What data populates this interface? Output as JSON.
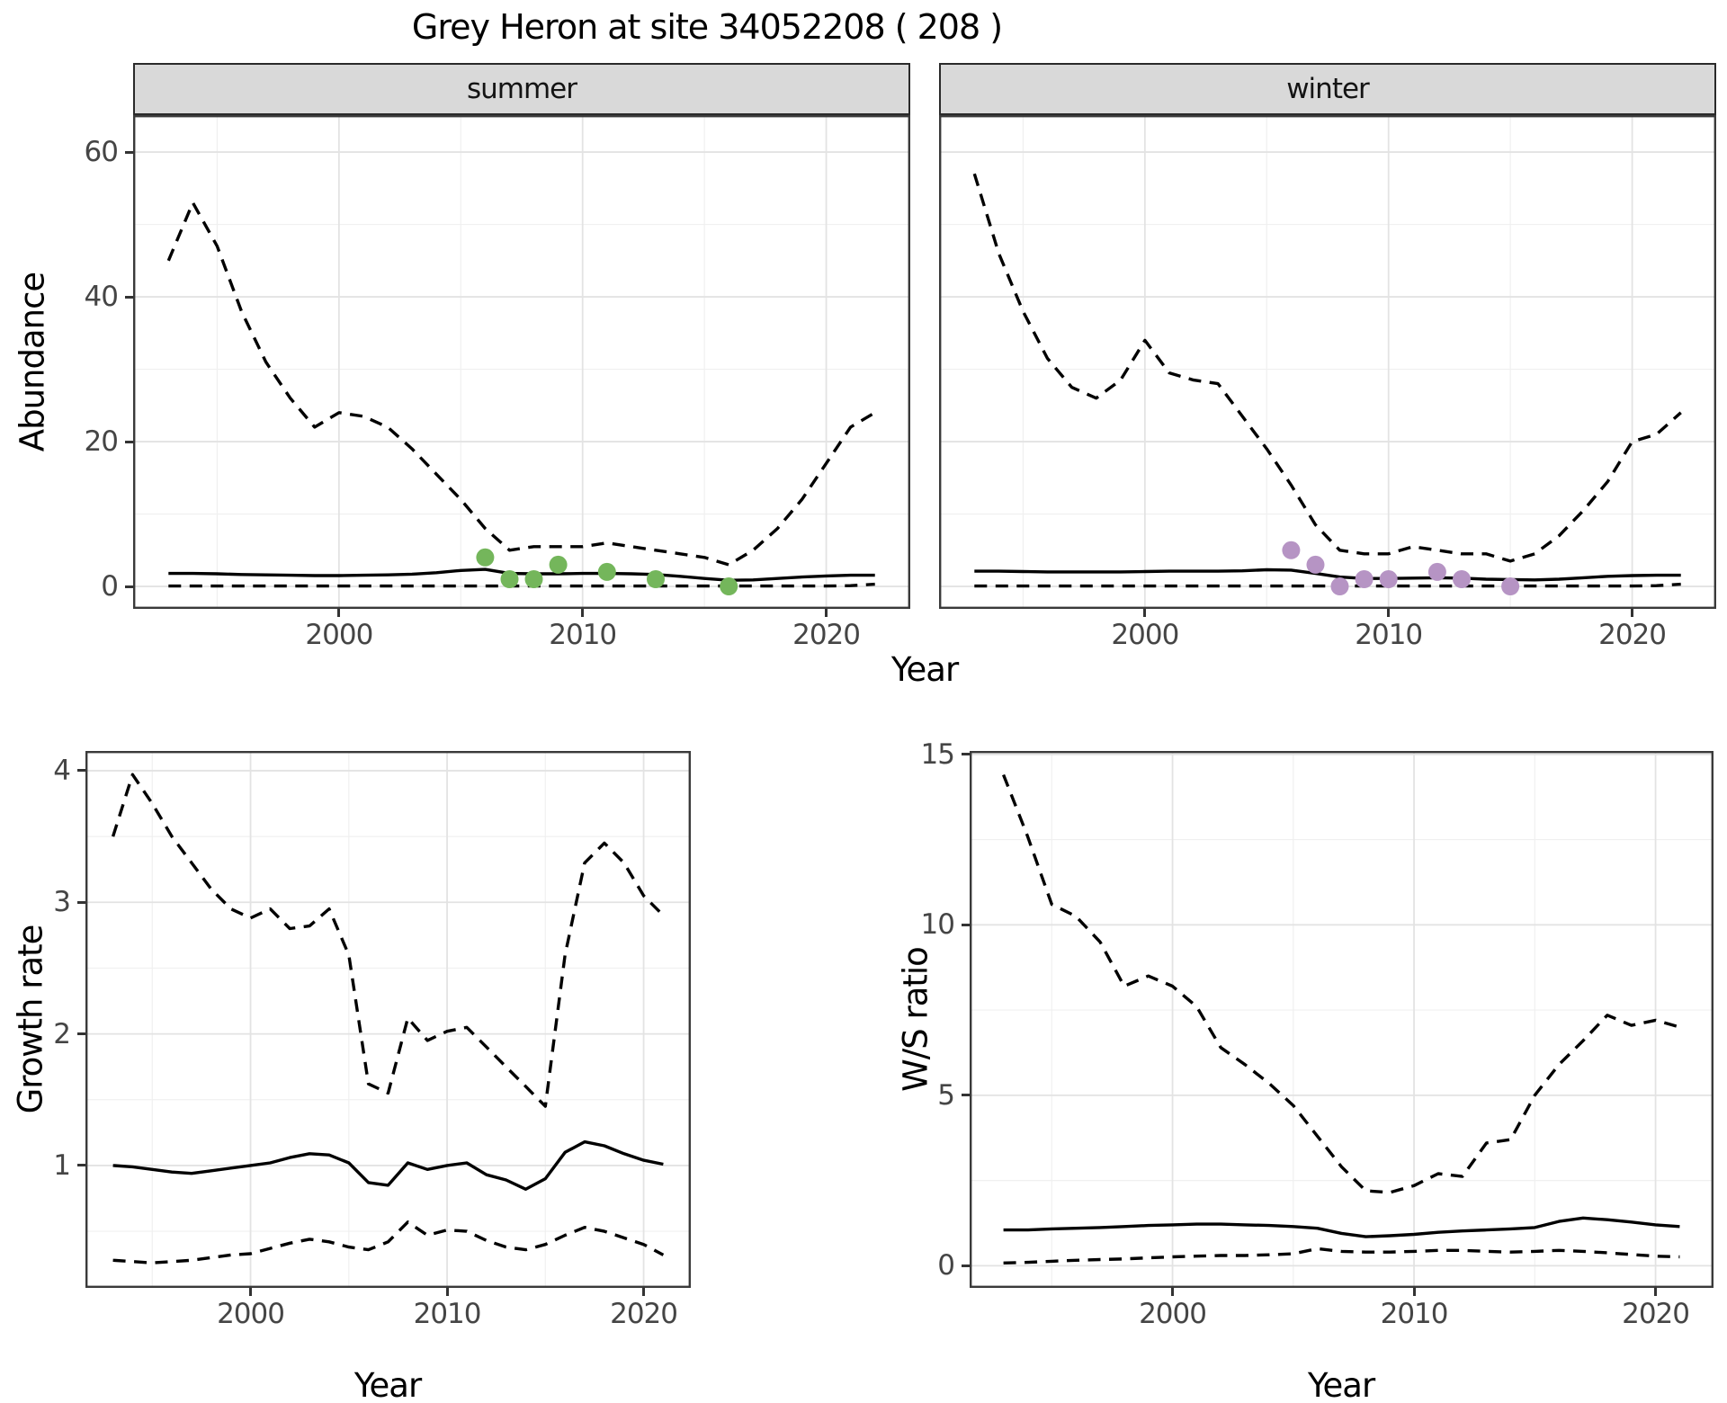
{
  "title": "Grey Heron at site 34052208 ( 208 )",
  "facets": [
    "summer",
    "winter"
  ],
  "axes": {
    "abundance": "Abundance",
    "year": "Year",
    "growth": "Growth rate",
    "ws": "W/S ratio"
  },
  "colors": {
    "summer_points": "#74b65b",
    "winter_points": "#b694c4",
    "line": "#000000",
    "strip_bg": "#d9d9d9",
    "grid_major": "#e3e3e3",
    "grid_minor": "#f0f0f0",
    "panel_border": "#3a3a3a",
    "tick_text": "#454545"
  },
  "chart_data": [
    {
      "id": "abundance-summer",
      "type": "line",
      "facet": "summer",
      "xlabel": "Year",
      "ylabel": "Abundance",
      "xlim": [
        1991.55,
        2023.45
      ],
      "ylim": [
        -3.1,
        65.1
      ],
      "xticks": [
        2000,
        2010,
        2020
      ],
      "xminor": [
        1995,
        2005,
        2015
      ],
      "yticks": [
        0,
        20,
        40,
        60
      ],
      "yminor": [
        10,
        30,
        50
      ],
      "x": [
        1993,
        1994,
        1995,
        1996,
        1997,
        1998,
        1999,
        2000,
        2001,
        2002,
        2003,
        2004,
        2005,
        2006,
        2007,
        2008,
        2009,
        2010,
        2011,
        2012,
        2013,
        2014,
        2015,
        2016,
        2017,
        2018,
        2019,
        2020,
        2021,
        2022
      ],
      "series": [
        {
          "name": "upper 95% CI",
          "style": "dashed",
          "color": "#000000",
          "values": [
            45,
            53,
            47,
            38,
            31,
            26,
            22,
            24,
            23.5,
            22,
            19,
            15.5,
            12,
            8,
            5,
            5.5,
            5.5,
            5.5,
            6,
            5.5,
            5,
            4.5,
            4,
            3,
            5,
            8,
            12,
            17,
            22,
            24
          ]
        },
        {
          "name": "median",
          "style": "solid",
          "color": "#000000",
          "values": [
            1.8,
            1.8,
            1.75,
            1.65,
            1.6,
            1.55,
            1.5,
            1.5,
            1.55,
            1.6,
            1.7,
            1.9,
            2.2,
            2.35,
            1.8,
            1.75,
            1.75,
            1.8,
            1.8,
            1.75,
            1.65,
            1.4,
            1.1,
            0.85,
            0.9,
            1.1,
            1.3,
            1.45,
            1.55,
            1.55
          ]
        },
        {
          "name": "lower 95% CI",
          "style": "dashed",
          "color": "#000000",
          "values": [
            0.05,
            0.05,
            0.05,
            0.05,
            0.05,
            0.05,
            0.05,
            0.05,
            0.05,
            0.05,
            0.05,
            0.05,
            0.05,
            0.05,
            0.05,
            0.05,
            0.05,
            0.05,
            0.05,
            0.05,
            0.05,
            0.05,
            0.05,
            0.05,
            0.05,
            0.05,
            0.05,
            0.05,
            0.1,
            0.3
          ]
        }
      ],
      "points": {
        "name": "observed summer counts",
        "color": "#74b65b",
        "x": [
          2006,
          2007,
          2008,
          2009,
          2011,
          2013,
          2016
        ],
        "y": [
          4,
          1,
          1,
          3,
          2,
          1,
          0
        ]
      }
    },
    {
      "id": "abundance-winter",
      "type": "line",
      "facet": "winter",
      "xlabel": "Year",
      "ylabel": "Abundance",
      "xlim": [
        1991.55,
        2023.45
      ],
      "ylim": [
        -3.1,
        65.1
      ],
      "xticks": [
        2000,
        2010,
        2020
      ],
      "xminor": [
        1995,
        2005,
        2015
      ],
      "yticks": [
        0,
        20,
        40,
        60
      ],
      "yminor": [
        10,
        30,
        50
      ],
      "x": [
        1993,
        1994,
        1995,
        1996,
        1997,
        1998,
        1999,
        2000,
        2001,
        2002,
        2003,
        2004,
        2005,
        2006,
        2007,
        2008,
        2009,
        2010,
        2011,
        2012,
        2013,
        2014,
        2015,
        2016,
        2017,
        2018,
        2019,
        2020,
        2021,
        2022
      ],
      "series": [
        {
          "name": "upper 95% CI",
          "style": "dashed",
          "color": "#000000",
          "values": [
            57,
            46,
            38,
            31.5,
            27.5,
            26,
            28.5,
            34,
            29.5,
            28.5,
            28,
            23.5,
            19,
            14,
            8.5,
            5,
            4.5,
            4.5,
            5.5,
            5,
            4.5,
            4.5,
            3.5,
            4.5,
            7,
            10.5,
            14.5,
            20,
            21,
            24
          ]
        },
        {
          "name": "median",
          "style": "solid",
          "color": "#000000",
          "values": [
            2.1,
            2.1,
            2.05,
            2.0,
            2.0,
            2.0,
            2.0,
            2.05,
            2.1,
            2.1,
            2.1,
            2.15,
            2.3,
            2.25,
            1.8,
            1.3,
            1.1,
            1.1,
            1.15,
            1.2,
            1.15,
            1.0,
            0.95,
            0.9,
            1.0,
            1.2,
            1.4,
            1.5,
            1.55,
            1.55
          ]
        },
        {
          "name": "lower 95% CI",
          "style": "dashed",
          "color": "#000000",
          "values": [
            0.05,
            0.05,
            0.05,
            0.05,
            0.05,
            0.05,
            0.05,
            0.05,
            0.05,
            0.05,
            0.05,
            0.05,
            0.05,
            0.05,
            0.05,
            0.05,
            0.05,
            0.05,
            0.05,
            0.05,
            0.05,
            0.05,
            0.05,
            0.05,
            0.05,
            0.05,
            0.05,
            0.05,
            0.1,
            0.3
          ]
        }
      ],
      "points": {
        "name": "observed winter counts",
        "color": "#b694c4",
        "x": [
          2006,
          2007,
          2008,
          2009,
          2010,
          2012,
          2013,
          2015
        ],
        "y": [
          5,
          3,
          0,
          1,
          1,
          2,
          1,
          0
        ]
      }
    },
    {
      "id": "growth",
      "type": "line",
      "xlabel": "Year",
      "ylabel": "Growth rate",
      "xlim": [
        1991.6,
        2022.4
      ],
      "ylim": [
        0.07,
        4.15
      ],
      "xticks": [
        2000,
        2010,
        2020
      ],
      "xminor": [
        1995,
        2005,
        2015
      ],
      "yticks": [
        1,
        2,
        3,
        4
      ],
      "yminor": [
        0.5,
        1.5,
        2.5,
        3.5
      ],
      "x": [
        1993,
        1994,
        1995,
        1996,
        1997,
        1998,
        1999,
        2000,
        2001,
        2002,
        2003,
        2004,
        2005,
        2006,
        2007,
        2008,
        2009,
        2010,
        2011,
        2012,
        2013,
        2014,
        2015,
        2016,
        2017,
        2018,
        2019,
        2020,
        2021
      ],
      "series": [
        {
          "name": "upper 95% CI",
          "style": "dashed",
          "color": "#000000",
          "values": [
            3.5,
            3.97,
            3.75,
            3.5,
            3.3,
            3.1,
            2.95,
            2.88,
            2.95,
            2.8,
            2.82,
            2.95,
            2.6,
            1.62,
            1.55,
            2.12,
            1.95,
            2.02,
            2.05,
            1.9,
            1.75,
            1.6,
            1.45,
            2.6,
            3.3,
            3.45,
            3.3,
            3.05,
            2.9
          ]
        },
        {
          "name": "median",
          "style": "solid",
          "color": "#000000",
          "values": [
            1.0,
            0.99,
            0.97,
            0.95,
            0.94,
            0.96,
            0.98,
            1.0,
            1.02,
            1.06,
            1.09,
            1.08,
            1.02,
            0.87,
            0.85,
            1.02,
            0.97,
            1.0,
            1.02,
            0.93,
            0.89,
            0.82,
            0.9,
            1.1,
            1.18,
            1.15,
            1.09,
            1.04,
            1.01
          ]
        },
        {
          "name": "lower 95% CI",
          "style": "dashed",
          "color": "#000000",
          "values": [
            0.28,
            0.27,
            0.26,
            0.27,
            0.28,
            0.3,
            0.32,
            0.33,
            0.37,
            0.41,
            0.44,
            0.42,
            0.38,
            0.36,
            0.42,
            0.57,
            0.47,
            0.51,
            0.5,
            0.43,
            0.38,
            0.36,
            0.4,
            0.47,
            0.53,
            0.5,
            0.45,
            0.4,
            0.32
          ]
        }
      ]
    },
    {
      "id": "ws",
      "type": "line",
      "xlabel": "Year",
      "ylabel": "W/S ratio",
      "xlim": [
        1991.6,
        2022.4
      ],
      "ylim": [
        -0.65,
        15.1
      ],
      "xticks": [
        2000,
        2010,
        2020
      ],
      "xminor": [
        1995,
        2005,
        2015
      ],
      "yticks": [
        0,
        5,
        10,
        15
      ],
      "yminor": [
        2.5,
        7.5,
        12.5
      ],
      "x": [
        1993,
        1994,
        1995,
        1996,
        1997,
        1998,
        1999,
        2000,
        2001,
        2002,
        2003,
        2004,
        2005,
        2006,
        2007,
        2008,
        2009,
        2010,
        2011,
        2012,
        2013,
        2014,
        2015,
        2016,
        2017,
        2018,
        2019,
        2020,
        2021
      ],
      "series": [
        {
          "name": "upper 95% CI",
          "style": "dashed",
          "color": "#000000",
          "values": [
            14.4,
            12.6,
            10.6,
            10.25,
            9.5,
            8.2,
            8.5,
            8.2,
            7.6,
            6.4,
            5.9,
            5.35,
            4.7,
            3.8,
            2.9,
            2.2,
            2.15,
            2.35,
            2.7,
            2.62,
            3.6,
            3.7,
            5.0,
            5.9,
            6.6,
            7.35,
            7.05,
            7.2,
            7.0
          ]
        },
        {
          "name": "median",
          "style": "solid",
          "color": "#000000",
          "values": [
            1.05,
            1.05,
            1.08,
            1.1,
            1.12,
            1.15,
            1.18,
            1.2,
            1.22,
            1.22,
            1.2,
            1.18,
            1.15,
            1.1,
            0.95,
            0.85,
            0.88,
            0.92,
            0.98,
            1.02,
            1.05,
            1.08,
            1.12,
            1.3,
            1.4,
            1.35,
            1.28,
            1.2,
            1.15
          ]
        },
        {
          "name": "lower 95% CI",
          "style": "dashed",
          "color": "#000000",
          "values": [
            0.08,
            0.1,
            0.13,
            0.16,
            0.18,
            0.2,
            0.23,
            0.26,
            0.28,
            0.3,
            0.3,
            0.32,
            0.35,
            0.5,
            0.42,
            0.4,
            0.4,
            0.42,
            0.45,
            0.45,
            0.42,
            0.4,
            0.42,
            0.45,
            0.42,
            0.38,
            0.33,
            0.28,
            0.26
          ]
        }
      ]
    }
  ]
}
